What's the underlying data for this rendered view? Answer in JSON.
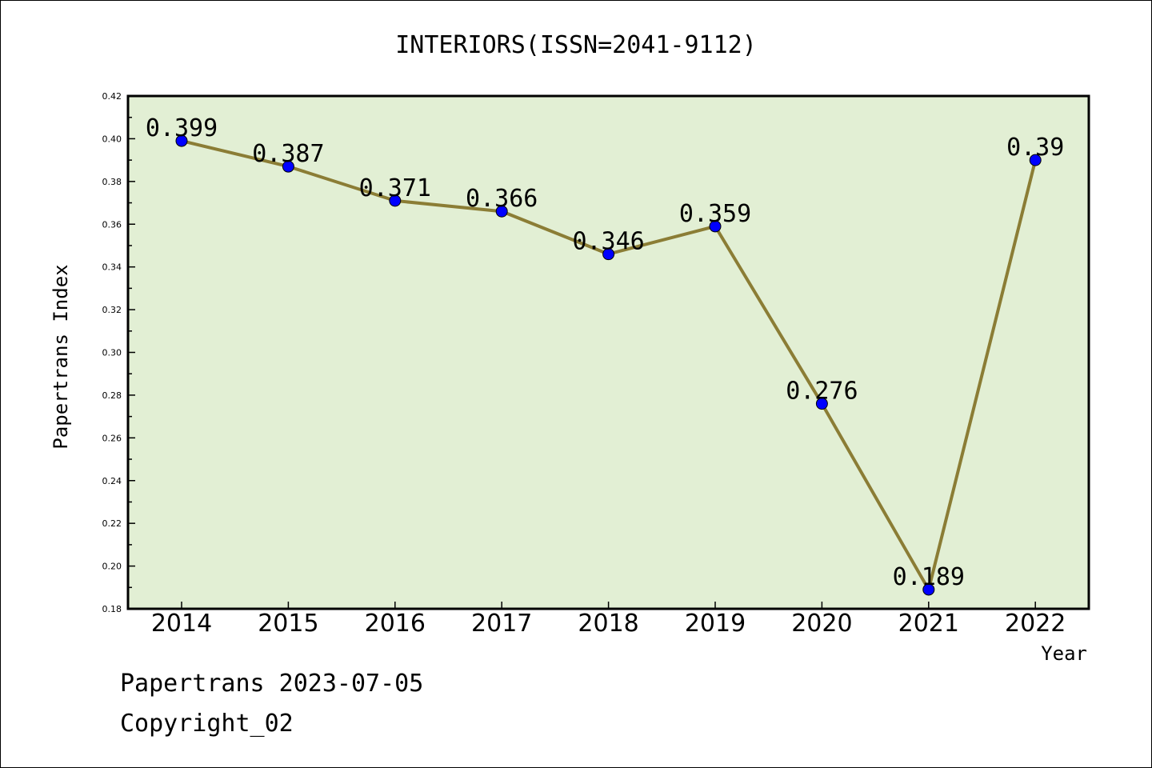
{
  "chart_data": {
    "type": "line",
    "title": "INTERIORS(ISSN=2041-9112)",
    "xlabel": "Year",
    "ylabel": "Papertrans Index",
    "categories": [
      "2014",
      "2015",
      "2016",
      "2017",
      "2018",
      "2019",
      "2020",
      "2021",
      "2022"
    ],
    "values": [
      0.399,
      0.387,
      0.371,
      0.366,
      0.346,
      0.359,
      0.276,
      0.189,
      0.39
    ],
    "data_labels": [
      "0.399",
      "0.387",
      "0.371",
      "0.366",
      "0.346",
      "0.359",
      "0.276",
      "0.189",
      "0.39"
    ],
    "ylim": [
      0.18,
      0.42
    ],
    "yticks": [
      "0.18",
      "0.20",
      "0.22",
      "0.24",
      "0.26",
      "0.28",
      "0.30",
      "0.32",
      "0.34",
      "0.36",
      "0.38",
      "0.40",
      "0.42"
    ],
    "grid": false,
    "colors": {
      "plot_background": "#e2efd4",
      "line": "#8b7d35",
      "marker": "#0000ff"
    }
  },
  "footer": {
    "line1": "Papertrans 2023-07-05",
    "line2": "Copyright_02"
  }
}
